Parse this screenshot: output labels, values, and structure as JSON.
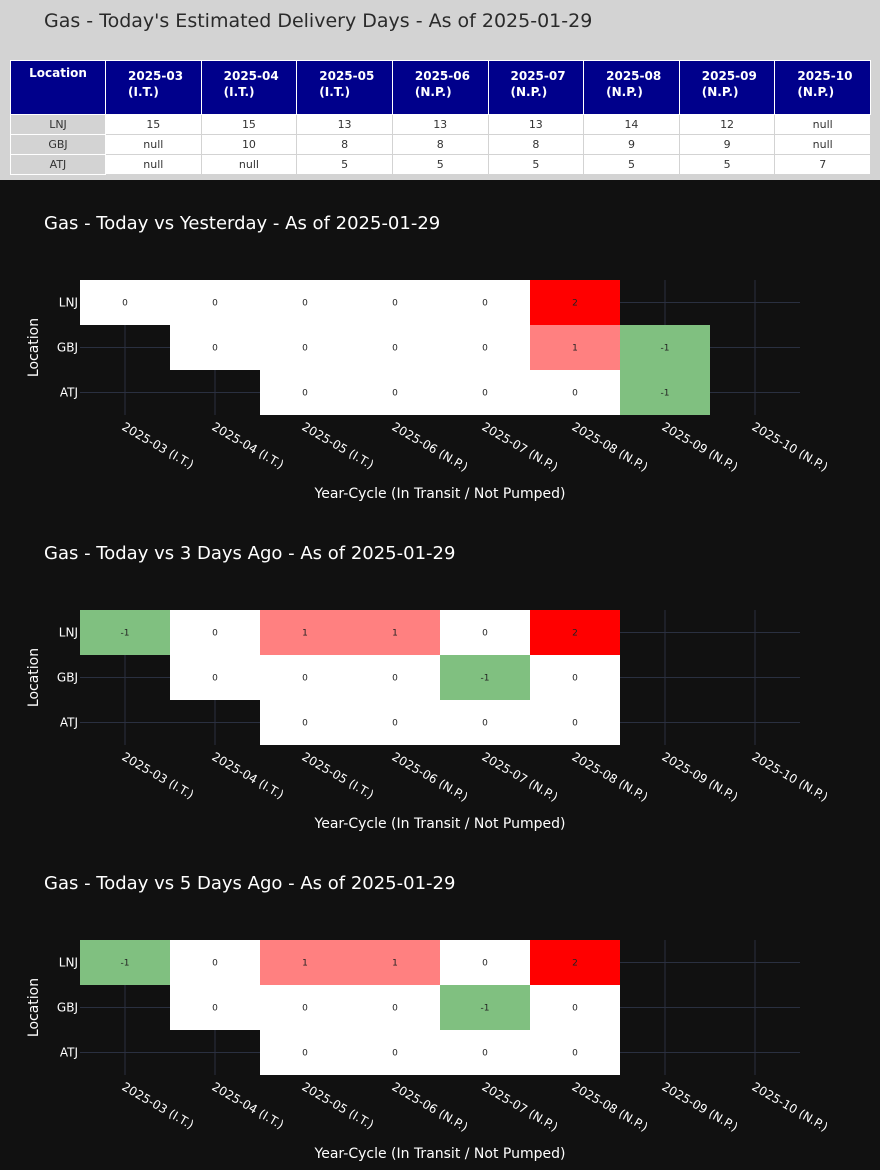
{
  "table": {
    "title": "Gas - Today's Estimated Delivery Days - As of 2025-01-29",
    "location_header": "Location",
    "columns": [
      {
        "line1": "2025-03",
        "line2": "(I.T.)"
      },
      {
        "line1": "2025-04",
        "line2": "(I.T.)"
      },
      {
        "line1": "2025-05",
        "line2": "(I.T.)"
      },
      {
        "line1": "2025-06",
        "line2": "(N.P.)"
      },
      {
        "line1": "2025-07",
        "line2": "(N.P.)"
      },
      {
        "line1": "2025-08",
        "line2": "(N.P.)"
      },
      {
        "line1": "2025-09",
        "line2": "(N.P.)"
      },
      {
        "line1": "2025-10",
        "line2": "(N.P.)"
      }
    ],
    "rows": [
      {
        "location": "LNJ",
        "values": [
          "15",
          "15",
          "13",
          "13",
          "13",
          "14",
          "12",
          "null"
        ]
      },
      {
        "location": "GBJ",
        "values": [
          "null",
          "10",
          "8",
          "8",
          "8",
          "9",
          "9",
          "null"
        ]
      },
      {
        "location": "ATJ",
        "values": [
          "null",
          "null",
          "5",
          "5",
          "5",
          "5",
          "5",
          "7"
        ]
      }
    ]
  },
  "colors": {
    "zero": "#ffffff",
    "plus_one": "#ff8080",
    "plus_two": "#ff0000",
    "minus_one": "#80c080",
    "grid": "#2a3040",
    "background": "#111111"
  },
  "chart_data": [
    {
      "type": "heatmap",
      "title": "Gas - Today vs Yesterday - As of 2025-01-29",
      "xlabel": "Year-Cycle (In Transit / Not Pumped)",
      "ylabel": "Location",
      "x": [
        "2025-03 (I.T.)",
        "2025-04 (I.T.)",
        "2025-05 (I.T.)",
        "2025-06 (N.P.)",
        "2025-07 (N.P.)",
        "2025-08 (N.P.)",
        "2025-09 (N.P.)",
        "2025-10 (N.P.)"
      ],
      "y": [
        "LNJ",
        "GBJ",
        "ATJ"
      ],
      "z": [
        [
          0,
          0,
          0,
          0,
          0,
          2,
          null,
          null
        ],
        [
          null,
          0,
          0,
          0,
          0,
          1,
          -1,
          null
        ],
        [
          null,
          null,
          0,
          0,
          0,
          0,
          -1,
          null
        ]
      ]
    },
    {
      "type": "heatmap",
      "title": "Gas - Today vs 3 Days Ago - As of 2025-01-29",
      "xlabel": "Year-Cycle (In Transit / Not Pumped)",
      "ylabel": "Location",
      "x": [
        "2025-03 (I.T.)",
        "2025-04 (I.T.)",
        "2025-05 (I.T.)",
        "2025-06 (N.P.)",
        "2025-07 (N.P.)",
        "2025-08 (N.P.)",
        "2025-09 (N.P.)",
        "2025-10 (N.P.)"
      ],
      "y": [
        "LNJ",
        "GBJ",
        "ATJ"
      ],
      "z": [
        [
          -1,
          0,
          1,
          1,
          0,
          2,
          null,
          null
        ],
        [
          null,
          0,
          0,
          0,
          -1,
          0,
          null,
          null
        ],
        [
          null,
          null,
          0,
          0,
          0,
          0,
          null,
          null
        ]
      ]
    },
    {
      "type": "heatmap",
      "title": "Gas - Today vs 5 Days Ago - As of 2025-01-29",
      "xlabel": "Year-Cycle (In Transit / Not Pumped)",
      "ylabel": "Location",
      "x": [
        "2025-03 (I.T.)",
        "2025-04 (I.T.)",
        "2025-05 (I.T.)",
        "2025-06 (N.P.)",
        "2025-07 (N.P.)",
        "2025-08 (N.P.)",
        "2025-09 (N.P.)",
        "2025-10 (N.P.)"
      ],
      "y": [
        "LNJ",
        "GBJ",
        "ATJ"
      ],
      "z": [
        [
          -1,
          0,
          1,
          1,
          0,
          2,
          null,
          null
        ],
        [
          null,
          0,
          0,
          0,
          -1,
          0,
          null,
          null
        ],
        [
          null,
          null,
          0,
          0,
          0,
          0,
          null,
          null
        ]
      ]
    }
  ]
}
